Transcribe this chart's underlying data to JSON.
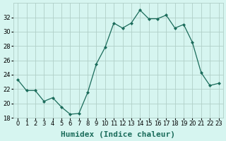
{
  "x": [
    0,
    1,
    2,
    3,
    4,
    5,
    6,
    7,
    8,
    9,
    10,
    11,
    12,
    13,
    14,
    15,
    16,
    17,
    18,
    19,
    20,
    21,
    22,
    23
  ],
  "y": [
    23.3,
    21.8,
    21.8,
    20.3,
    20.8,
    19.5,
    18.5,
    18.6,
    21.5,
    25.5,
    27.8,
    31.2,
    30.5,
    31.2,
    33.0,
    31.8,
    31.8,
    32.3,
    30.5,
    31.0,
    28.5,
    24.3,
    22.5,
    22.8
  ],
  "line_color": "#1a6b5a",
  "marker": "D",
  "marker_size": 2.5,
  "bg_color": "#d6f5f0",
  "grid_color": "#b0cfc8",
  "xlabel": "Humidex (Indice chaleur)",
  "ylim": [
    18,
    34
  ],
  "xlim": [
    -0.5,
    23.5
  ],
  "yticks": [
    18,
    20,
    22,
    24,
    26,
    28,
    30,
    32
  ],
  "xticks": [
    0,
    1,
    2,
    3,
    4,
    5,
    6,
    7,
    8,
    9,
    10,
    11,
    12,
    13,
    14,
    15,
    16,
    17,
    18,
    19,
    20,
    21,
    22,
    23
  ],
  "xlabel_fontsize": 8,
  "tick_fontsize": 6
}
